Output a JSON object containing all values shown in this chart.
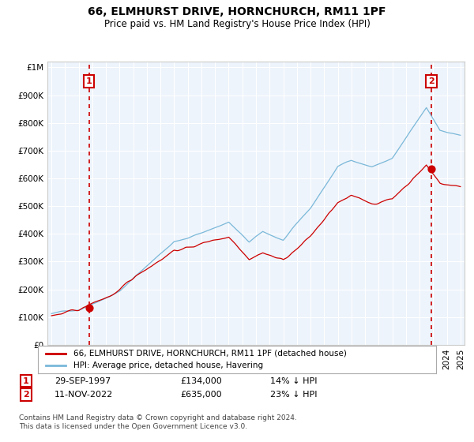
{
  "title": "66, ELMHURST DRIVE, HORNCHURCH, RM11 1PF",
  "subtitle": "Price paid vs. HM Land Registry's House Price Index (HPI)",
  "legend_line1": "66, ELMHURST DRIVE, HORNCHURCH, RM11 1PF (detached house)",
  "legend_line2": "HPI: Average price, detached house, Havering",
  "footnote": "Contains HM Land Registry data © Crown copyright and database right 2024.\nThis data is licensed under the Open Government Licence v3.0.",
  "annotation1_date": "29-SEP-1997",
  "annotation1_price": "£134,000",
  "annotation1_hpi": "14% ↓ HPI",
  "annotation2_date": "11-NOV-2022",
  "annotation2_price": "£635,000",
  "annotation2_hpi": "23% ↓ HPI",
  "sale1_year": 1997.75,
  "sale1_price": 134000,
  "sale2_year": 2022.87,
  "sale2_price": 635000,
  "hpi_color": "#7ab8d9",
  "price_color": "#cc0000",
  "annotation_color": "#cc0000",
  "background_color": "#ffffff",
  "plot_bg_color": "#eef4fb",
  "grid_color": "#ffffff",
  "ylim": [
    0,
    1000000
  ],
  "xlim": [
    1994.7,
    2025.3
  ],
  "yticks": [
    0,
    100000,
    200000,
    300000,
    400000,
    500000,
    600000,
    700000,
    800000,
    900000,
    1000000
  ]
}
